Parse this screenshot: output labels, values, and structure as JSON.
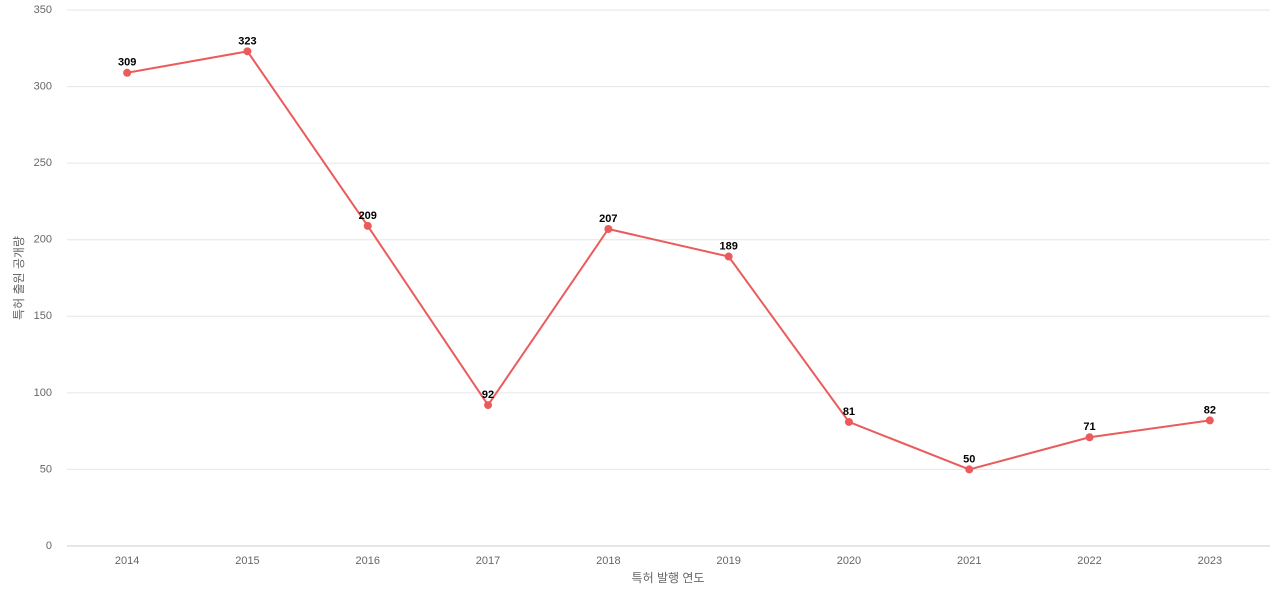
{
  "chart_data": {
    "type": "line",
    "x_label": "특허 발행 연도",
    "y_label": "특허 출원 공개량",
    "categories": [
      "2014",
      "2015",
      "2016",
      "2017",
      "2018",
      "2019",
      "2020",
      "2021",
      "2022",
      "2023"
    ],
    "values": [
      309,
      323,
      209,
      92,
      207,
      189,
      81,
      50,
      71,
      82
    ],
    "color": "#eb5b5b",
    "ylim": [
      0,
      350
    ],
    "yticks": [
      0,
      50,
      100,
      150,
      200,
      250,
      300,
      350
    ],
    "grid": true
  }
}
